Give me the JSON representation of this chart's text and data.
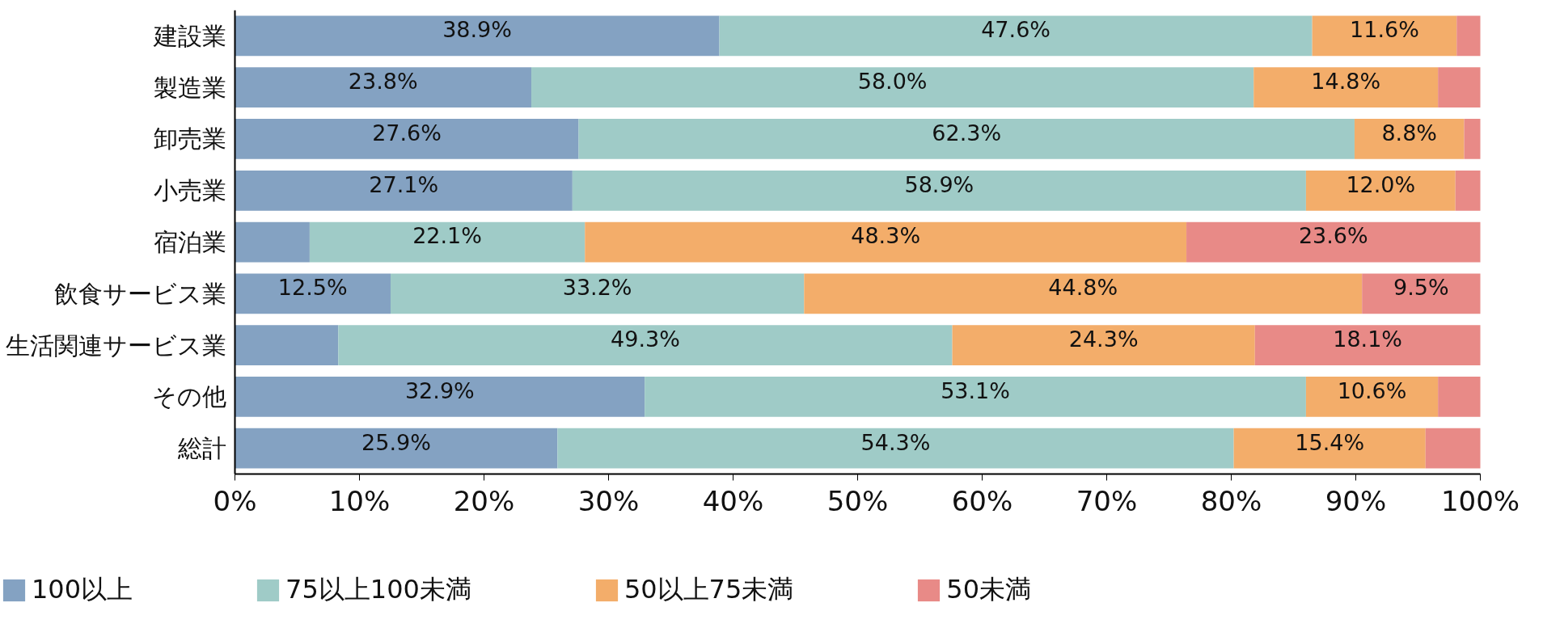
{
  "chart_data": {
    "type": "bar",
    "orientation": "horizontal",
    "stacked": true,
    "categories": [
      "建設業",
      "製造業",
      "卸売業",
      "小売業",
      "宿泊業",
      "飲食サービス業",
      "生活関連サービス業",
      "その他",
      "総計"
    ],
    "series": [
      {
        "name": "100以上",
        "color": "#84a2c2",
        "values": [
          38.9,
          23.8,
          27.6,
          27.1,
          6.0,
          12.5,
          8.3,
          32.9,
          25.9
        ],
        "value_labels": [
          "38.9%",
          "23.8%",
          "27.6%",
          "27.1%",
          null,
          "12.5%",
          null,
          "32.9%",
          "25.9%"
        ]
      },
      {
        "name": "75以上100未満",
        "color": "#9fcbc7",
        "values": [
          47.6,
          58.0,
          62.3,
          58.9,
          22.1,
          33.2,
          49.3,
          53.1,
          54.3
        ],
        "value_labels": [
          "47.6%",
          "58.0%",
          "62.3%",
          "58.9%",
          "22.1%",
          "33.2%",
          "49.3%",
          "53.1%",
          "54.3%"
        ]
      },
      {
        "name": "50以上75未満",
        "color": "#f3ad6a",
        "values": [
          11.6,
          14.8,
          8.8,
          12.0,
          48.3,
          44.8,
          24.3,
          10.6,
          15.4
        ],
        "value_labels": [
          "11.6%",
          "14.8%",
          "8.8%",
          "12.0%",
          "48.3%",
          "44.8%",
          "24.3%",
          "10.6%",
          "15.4%"
        ]
      },
      {
        "name": "50未満",
        "color": "#e88a87",
        "values": [
          1.9,
          3.4,
          1.3,
          2.0,
          23.6,
          9.5,
          18.1,
          3.4,
          4.4
        ],
        "value_labels": [
          null,
          null,
          null,
          null,
          "23.6%",
          "9.5%",
          "18.1%",
          null,
          null
        ]
      }
    ],
    "xlim": [
      0,
      100
    ],
    "xticks": [
      {
        "value": 0,
        "label": "0%"
      },
      {
        "value": 10,
        "label": "10%"
      },
      {
        "value": 20,
        "label": "20%"
      },
      {
        "value": 30,
        "label": "30%"
      },
      {
        "value": 40,
        "label": "40%"
      },
      {
        "value": 50,
        "label": "50%"
      },
      {
        "value": 60,
        "label": "60%"
      },
      {
        "value": 70,
        "label": "70%"
      },
      {
        "value": 80,
        "label": "80%"
      },
      {
        "value": 90,
        "label": "90%"
      },
      {
        "value": 100,
        "label": "100%"
      }
    ],
    "grid": false,
    "legend": "bottom"
  }
}
